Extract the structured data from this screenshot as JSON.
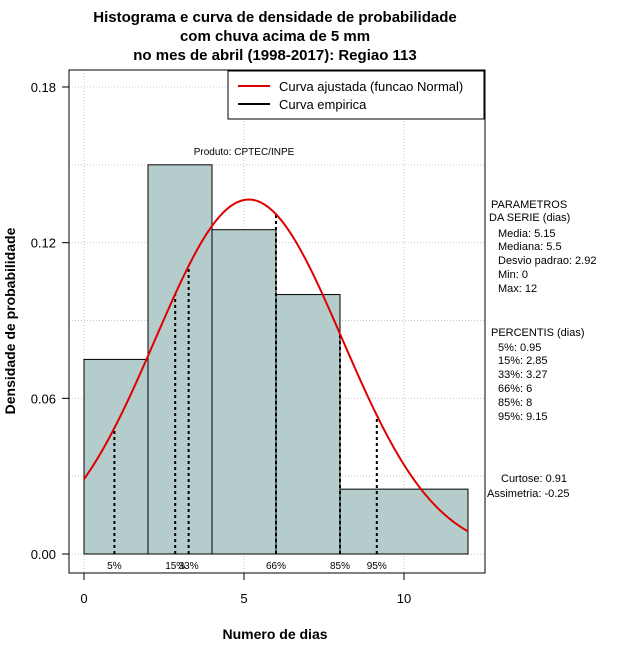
{
  "chart_data": {
    "type": "histogram",
    "title": [
      "Histograma e curva de densidade de probabilidade",
      "com chuva acima de 5 mm",
      "no mes de abril (1998-2017): Regiao 113"
    ],
    "xlabel": "Numero de dias",
    "ylabel": "Densidade de probabilidade",
    "xlim": [
      -0.5,
      12.6
    ],
    "ylim": [
      -0.005,
      0.187
    ],
    "x_ticks": [
      0,
      5,
      10
    ],
    "y_ticks": [
      0.0,
      0.06,
      0.12,
      0.18
    ],
    "y_tick_labels": [
      "0.00",
      "0.06",
      "0.12",
      "0.18"
    ],
    "bins": [
      {
        "start": 0,
        "end": 2,
        "density": 0.075
      },
      {
        "start": 2,
        "end": 4,
        "density": 0.15
      },
      {
        "start": 4,
        "end": 6,
        "density": 0.125
      },
      {
        "start": 6,
        "end": 8,
        "density": 0.1
      },
      {
        "start": 8,
        "end": 12,
        "density": 0.025
      }
    ],
    "normal_curve": {
      "mean": 5.15,
      "sd": 2.92,
      "from": 0,
      "to": 12
    },
    "percentiles": [
      {
        "label": "5%",
        "x": 0.95
      },
      {
        "label": "15%",
        "x": 2.85
      },
      {
        "label": "33%",
        "x": 3.27
      },
      {
        "label": "66%",
        "x": 6
      },
      {
        "label": "85%",
        "x": 8
      },
      {
        "label": "95%",
        "x": 9.15
      }
    ],
    "legend": [
      {
        "name": "Curva ajustada (funcao Normal)",
        "color": "#e00000"
      },
      {
        "name": "Curva empirica",
        "color": "#000000"
      }
    ],
    "legend_position": "top-right",
    "annotation": "Produto: CPTEC/INPE",
    "grid": true,
    "colors": {
      "bar_fill": "#b4cccc",
      "curve": "#e00000"
    }
  },
  "side_panel": {
    "params_header": [
      "PARAMETROS",
      "DA SERIE (dias)"
    ],
    "params": [
      "Media: 5.15",
      "Mediana: 5.5",
      "Desvio padrao: 2.92",
      "Min: 0",
      "Max: 12"
    ],
    "percentis_header": "PERCENTIS (dias)",
    "percentis": [
      "5%: 0.95",
      "15%: 2.85",
      "33%: 3.27",
      "66%: 6",
      "85%: 8",
      "95%: 9.15"
    ],
    "stats": [
      "Curtose: 0.91",
      "Assimetria: -0.25"
    ]
  }
}
